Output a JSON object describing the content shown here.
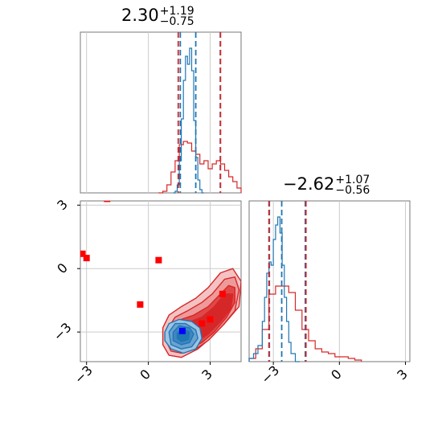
{
  "titles": [
    {
      "value": "2.30",
      "sup": "+1.19",
      "sub": "−0.75"
    },
    {
      "value": "−2.62",
      "sup": "+1.07",
      "sub": "−0.56"
    }
  ],
  "colors": {
    "blue": "#1f77b4",
    "red": "#d62728",
    "marker_red": "#ff0000",
    "marker_blue": "#0000ff",
    "grid": "#cccccc",
    "frame": "#777777"
  },
  "chart_data": {
    "type": "corner",
    "grid": true,
    "axes": {
      "x_top": {
        "ylim": [
          0,
          1
        ],
        "xlim": [
          -3.3,
          4.5
        ]
      },
      "scatter": {
        "xlim": [
          -3.3,
          4.5
        ],
        "ylim": [
          -4.4,
          3.2
        ]
      },
      "y_hist": {
        "xlim": [
          -4.1,
          3.2
        ]
      }
    },
    "ticks": {
      "x": [
        {
          "value": -3,
          "label": "−3"
        },
        {
          "value": 0,
          "label": "0"
        },
        {
          "value": 3,
          "label": "3"
        }
      ],
      "y": [
        {
          "value": -3,
          "label": "−3"
        },
        {
          "value": 0,
          "label": "0"
        },
        {
          "value": 3,
          "label": "3"
        }
      ]
    },
    "hist_x_blue": {
      "bins": [
        1.2,
        1.3,
        1.4,
        1.5,
        1.6,
        1.7,
        1.8,
        1.9,
        2.0,
        2.1,
        2.2,
        2.3,
        2.4,
        2.5,
        2.6,
        2.7
      ],
      "heights": [
        0.0,
        0.01,
        0.05,
        0.2,
        0.46,
        0.7,
        0.85,
        0.8,
        0.9,
        0.76,
        0.45,
        0.22,
        0.08,
        0.02,
        0.0
      ]
    },
    "hist_x_red": {
      "bins": [
        0.5,
        0.7,
        0.9,
        1.1,
        1.3,
        1.5,
        1.7,
        1.9,
        2.1,
        2.3,
        2.5,
        2.7,
        2.9,
        3.1,
        3.3,
        3.5,
        3.7,
        3.9,
        4.1,
        4.3,
        4.5
      ],
      "heights": [
        0.0,
        0.01,
        0.05,
        0.13,
        0.2,
        0.3,
        0.32,
        0.31,
        0.26,
        0.24,
        0.18,
        0.2,
        0.15,
        0.18,
        0.2,
        0.18,
        0.14,
        0.1,
        0.07,
        0.03
      ]
    },
    "hist_y_blue": {
      "bins": [
        -4.1,
        -3.9,
        -3.7,
        -3.5,
        -3.4,
        -3.3,
        -3.2,
        -3.1,
        -3.0,
        -2.9,
        -2.8,
        -2.7,
        -2.6,
        -2.5,
        -2.4,
        -2.3,
        -2.2,
        -2.0,
        -1.8
      ],
      "heights": [
        0.02,
        0.05,
        0.1,
        0.25,
        0.4,
        0.55,
        0.62,
        0.6,
        0.76,
        0.85,
        0.9,
        0.8,
        0.6,
        0.4,
        0.25,
        0.12,
        0.05,
        0.0
      ]
    },
    "hist_y_red": {
      "bins": [
        -4.1,
        -3.8,
        -3.5,
        -3.2,
        -2.9,
        -2.6,
        -2.3,
        -2.0,
        -1.7,
        -1.4,
        -1.1,
        -0.8,
        -0.5,
        -0.2,
        0.1,
        0.4,
        0.7,
        1.0
      ],
      "heights": [
        0.02,
        0.08,
        0.2,
        0.42,
        0.47,
        0.47,
        0.43,
        0.32,
        0.2,
        0.13,
        0.08,
        0.06,
        0.05,
        0.03,
        0.03,
        0.02,
        0.01
      ]
    },
    "quantiles": {
      "x_blue": [
        1.55,
        2.3,
        3.49
      ],
      "x_red": [
        1.45,
        3.5
      ],
      "y_blue": [
        -3.18,
        -2.62,
        -1.55
      ],
      "y_red": [
        -3.2,
        -1.52
      ]
    },
    "contours_red": [
      {
        "fill": "#f4c2c2",
        "points": [
          [
            0.7,
            -2.8
          ],
          [
            1.0,
            -2.2
          ],
          [
            1.6,
            -1.8
          ],
          [
            2.3,
            -1.4
          ],
          [
            2.9,
            -0.9
          ],
          [
            3.5,
            -0.2
          ],
          [
            4.1,
            0.0
          ],
          [
            4.5,
            -0.6
          ],
          [
            4.4,
            -1.8
          ],
          [
            3.7,
            -2.6
          ],
          [
            3.0,
            -3.3
          ],
          [
            2.4,
            -3.8
          ],
          [
            1.6,
            -4.2
          ],
          [
            1.0,
            -4.1
          ],
          [
            0.7,
            -3.6
          ]
        ]
      },
      {
        "fill": "#ee9a9a",
        "points": [
          [
            0.9,
            -2.9
          ],
          [
            1.3,
            -2.3
          ],
          [
            1.9,
            -2.0
          ],
          [
            2.6,
            -1.6
          ],
          [
            3.1,
            -1.2
          ],
          [
            3.7,
            -0.5
          ],
          [
            4.2,
            -0.4
          ],
          [
            4.4,
            -1.0
          ],
          [
            4.2,
            -2.0
          ],
          [
            3.6,
            -2.7
          ],
          [
            2.9,
            -3.4
          ],
          [
            2.3,
            -3.8
          ],
          [
            1.6,
            -4.0
          ],
          [
            1.1,
            -3.9
          ],
          [
            0.9,
            -3.5
          ]
        ]
      },
      {
        "fill": "#e04848",
        "points": [
          [
            1.1,
            -2.9
          ],
          [
            1.6,
            -2.4
          ],
          [
            2.2,
            -2.2
          ],
          [
            2.9,
            -1.8
          ],
          [
            3.4,
            -1.3
          ],
          [
            3.9,
            -0.8
          ],
          [
            4.2,
            -0.9
          ],
          [
            4.2,
            -1.6
          ],
          [
            3.8,
            -2.3
          ],
          [
            3.2,
            -3.0
          ],
          [
            2.6,
            -3.5
          ],
          [
            2.0,
            -3.8
          ],
          [
            1.5,
            -3.8
          ],
          [
            1.1,
            -3.5
          ]
        ]
      },
      {
        "fill": "#d62728",
        "points": [
          [
            1.3,
            -2.9
          ],
          [
            1.8,
            -2.6
          ],
          [
            2.6,
            -2.3
          ],
          [
            3.2,
            -1.8
          ],
          [
            3.7,
            -1.2
          ],
          [
            4.1,
            -1.2
          ],
          [
            4.0,
            -1.9
          ],
          [
            3.5,
            -2.5
          ],
          [
            2.9,
            -3.1
          ],
          [
            2.3,
            -3.5
          ],
          [
            1.8,
            -3.6
          ],
          [
            1.4,
            -3.4
          ]
        ]
      }
    ],
    "contours_blue": [
      {
        "fill": "#9fc3e2",
        "points": [
          [
            0.8,
            -3.0
          ],
          [
            1.0,
            -2.6
          ],
          [
            1.5,
            -2.4
          ],
          [
            2.1,
            -2.5
          ],
          [
            2.5,
            -2.8
          ],
          [
            2.6,
            -3.3
          ],
          [
            2.3,
            -3.8
          ],
          [
            1.7,
            -4.0
          ],
          [
            1.1,
            -3.8
          ],
          [
            0.8,
            -3.4
          ]
        ]
      },
      {
        "fill": "#6aa2d0",
        "points": [
          [
            1.0,
            -3.0
          ],
          [
            1.3,
            -2.6
          ],
          [
            1.8,
            -2.6
          ],
          [
            2.3,
            -2.9
          ],
          [
            2.4,
            -3.3
          ],
          [
            2.1,
            -3.7
          ],
          [
            1.6,
            -3.8
          ],
          [
            1.1,
            -3.6
          ]
        ]
      },
      {
        "fill": "#3f86c1",
        "points": [
          [
            1.2,
            -3.0
          ],
          [
            1.5,
            -2.7
          ],
          [
            2.0,
            -2.8
          ],
          [
            2.2,
            -3.1
          ],
          [
            2.0,
            -3.5
          ],
          [
            1.6,
            -3.6
          ],
          [
            1.2,
            -3.4
          ]
        ]
      },
      {
        "fill": "#1f77b4",
        "points": [
          [
            1.4,
            -3.05
          ],
          [
            1.7,
            -2.85
          ],
          [
            2.0,
            -3.0
          ],
          [
            1.95,
            -3.35
          ],
          [
            1.6,
            -3.45
          ],
          [
            1.4,
            -3.3
          ]
        ]
      }
    ],
    "red_markers": [
      [
        -2.0,
        3.3
      ],
      [
        -3.2,
        0.7
      ],
      [
        -3.0,
        0.5
      ],
      [
        0.5,
        0.4
      ],
      [
        -0.4,
        -1.7
      ],
      [
        3.6,
        -1.2
      ],
      [
        3.0,
        -2.4
      ],
      [
        2.6,
        -2.6
      ]
    ],
    "blue_marker": [
      1.65,
      -2.95
    ]
  }
}
